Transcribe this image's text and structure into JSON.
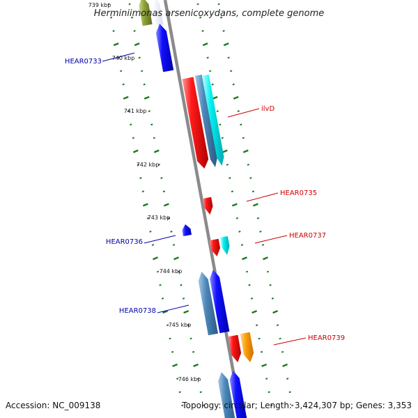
{
  "title": "Herminiimonas arsenicoxydans, complete genome",
  "footer": {
    "accession": "Accession: NC_009138",
    "topology": "Topology: circular; Length: 3,424,307 bp; Genes: 3,353"
  },
  "scale_labels": [
    "739 kbp",
    "740 kbp",
    "741 kbp",
    "742 kbp",
    "743 kbp",
    "744 kbp",
    "745 kbp",
    "746 kbp"
  ],
  "gene_labels": [
    {
      "name": "HEAR0733",
      "strand": "left"
    },
    {
      "name": "ilvD",
      "strand": "right"
    },
    {
      "name": "HEAR0735",
      "strand": "right"
    },
    {
      "name": "HEAR0736",
      "strand": "left"
    },
    {
      "name": "HEAR0737",
      "strand": "right"
    },
    {
      "name": "HEAR0738",
      "strand": "left"
    },
    {
      "name": "HEAR0739",
      "strand": "right"
    }
  ],
  "colors": {
    "backbone": "#888888",
    "forward_gene": "#ff0000",
    "reverse_gene": "#0000ff",
    "forward_label": "#cc0000",
    "reverse_label": "#0000aa",
    "cds_forward": "#00e5ee",
    "cds_reverse": "#4682b4",
    "tick": "#1a7a1a",
    "orange_gene": "#ffa500",
    "olive_gene": "#8fa13a"
  }
}
